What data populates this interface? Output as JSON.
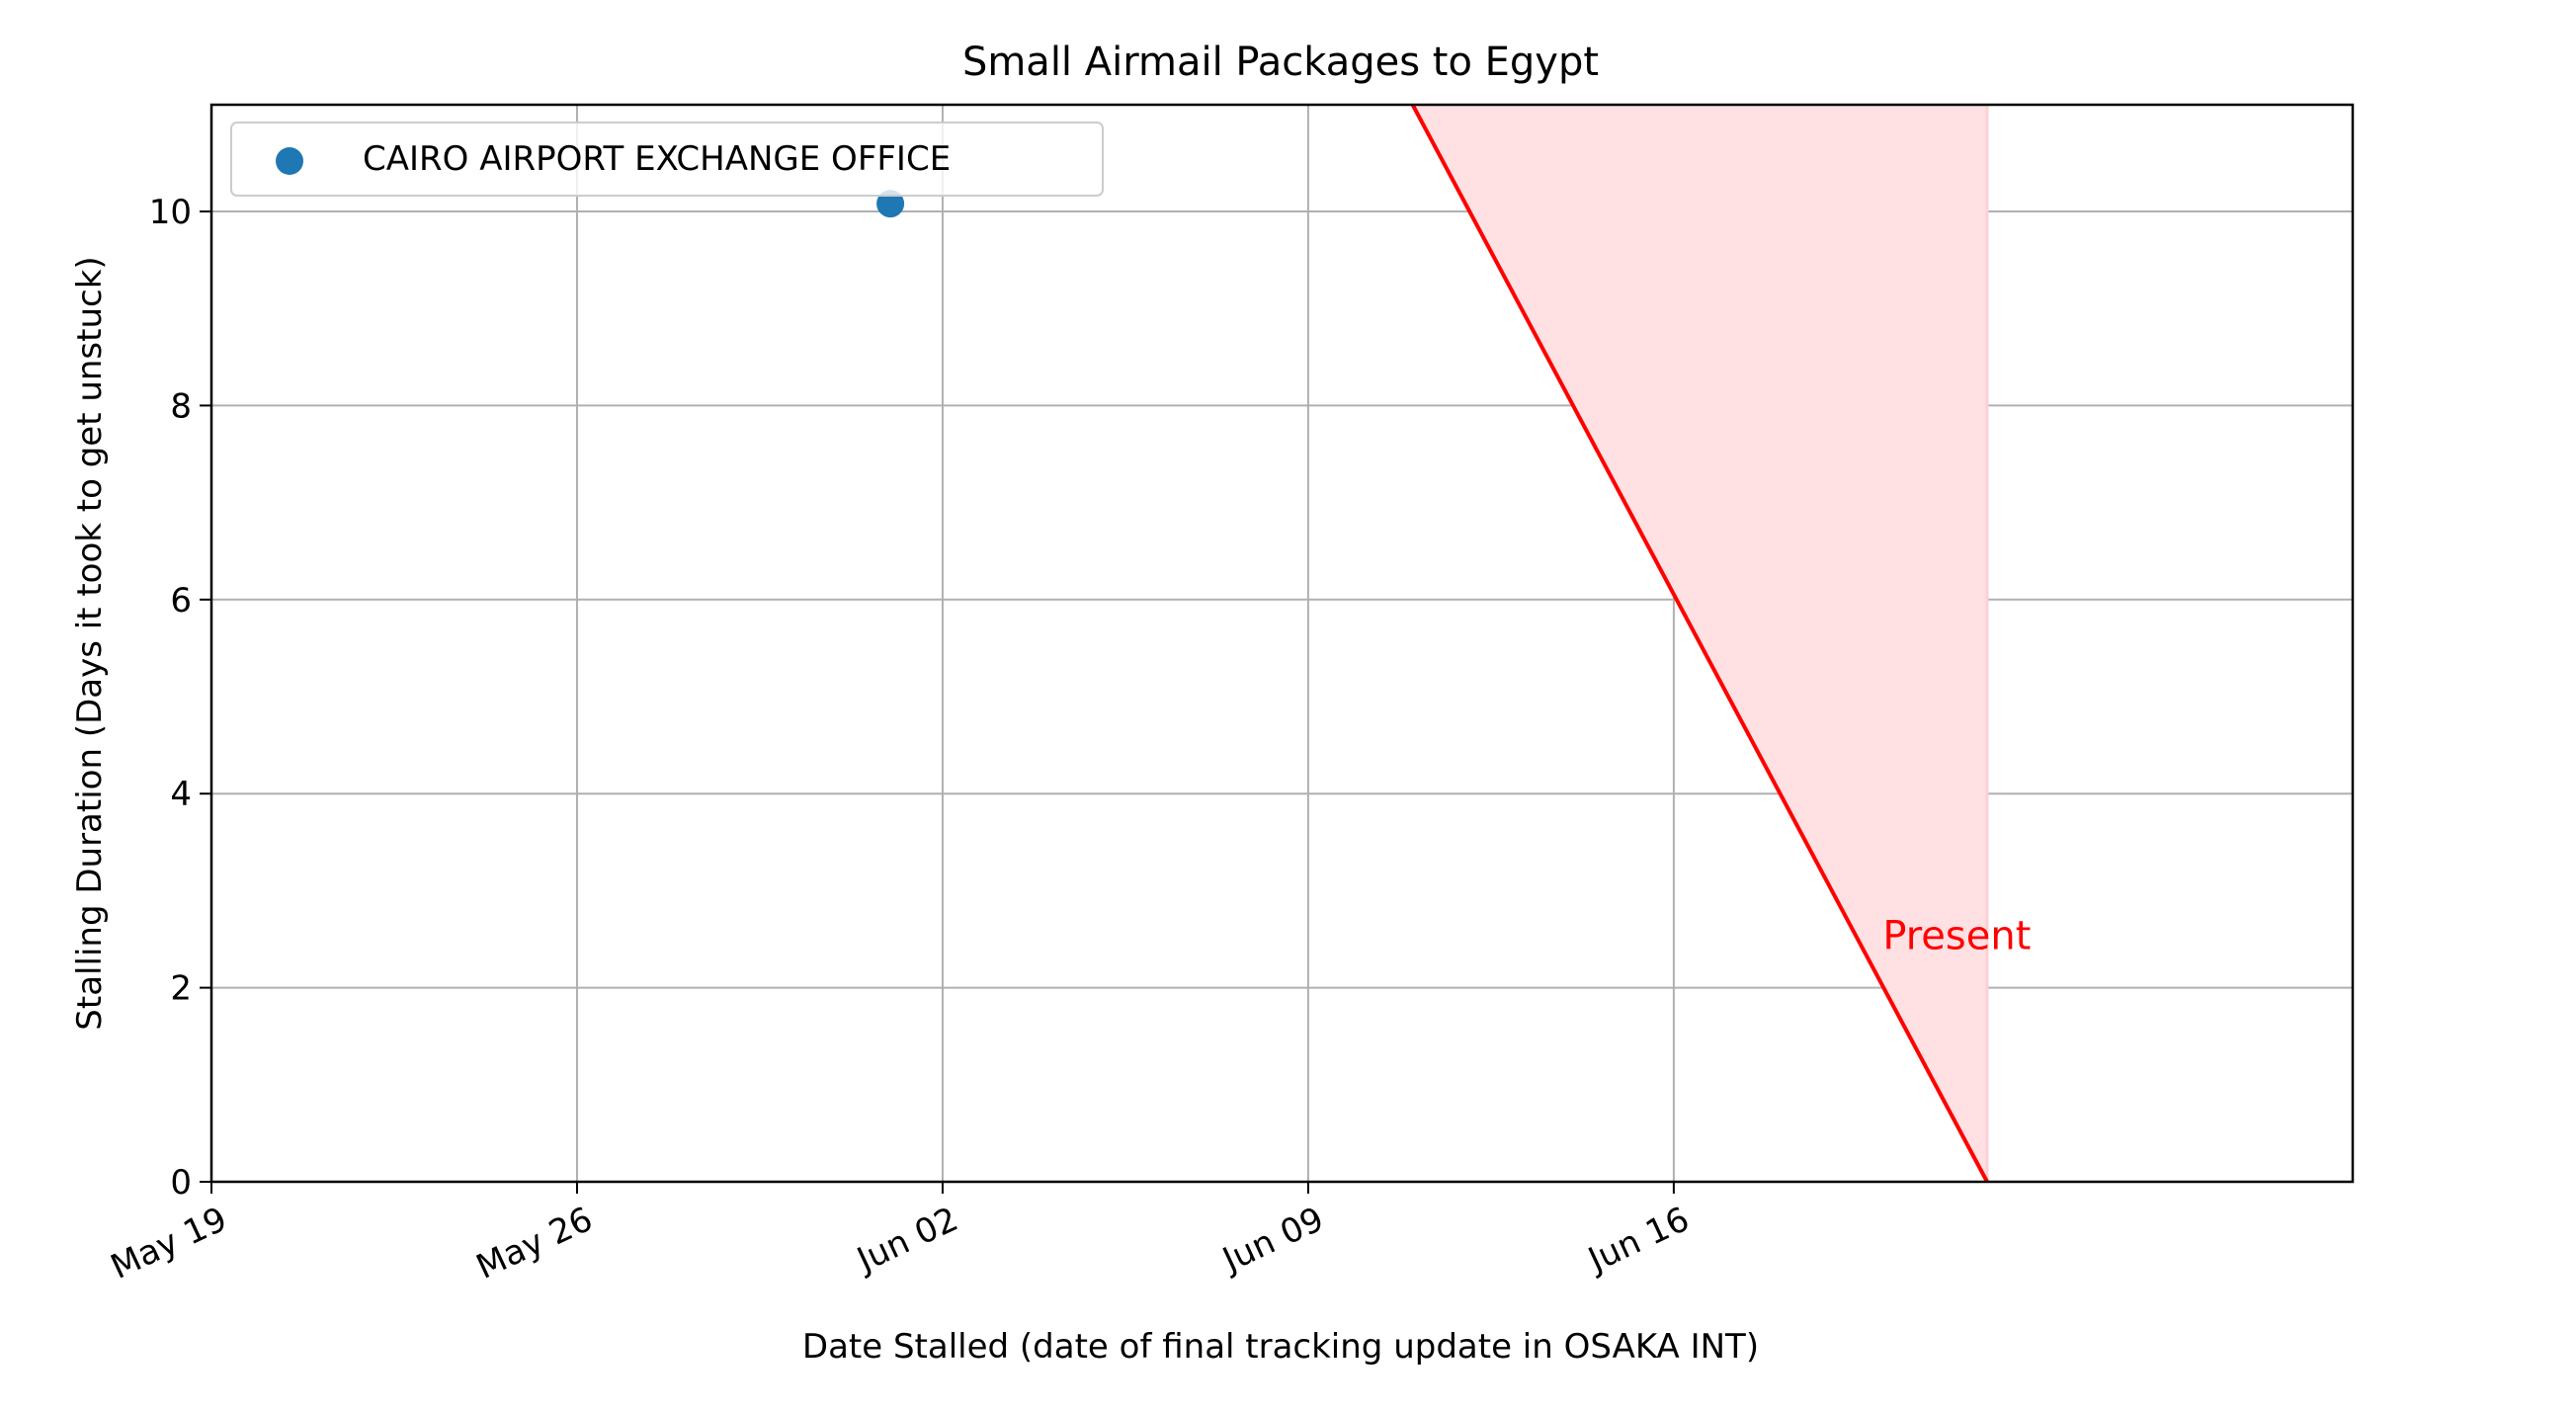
{
  "chart_data": {
    "type": "scatter",
    "title": "Small Airmail Packages to Egypt",
    "xlabel": "Date Stalled (date of final tracking update in OSAKA INT)",
    "ylabel": "Stalling Duration (Days it took to get unstuck)",
    "x_axis": "date",
    "xlim": [
      "2024-05-19",
      "2024-06-29"
    ],
    "ylim": [
      0,
      11.1
    ],
    "x_ticks": [
      {
        "date": "2024-05-19",
        "label": "May 19"
      },
      {
        "date": "2024-05-26",
        "label": "May 26"
      },
      {
        "date": "2024-06-02",
        "label": "Jun 02"
      },
      {
        "date": "2024-06-09",
        "label": "Jun 09"
      },
      {
        "date": "2024-06-16",
        "label": "Jun 16"
      }
    ],
    "y_ticks": [
      {
        "value": 0,
        "label": "0"
      },
      {
        "value": 2,
        "label": "2"
      },
      {
        "value": 4,
        "label": "4"
      },
      {
        "value": 6,
        "label": "6"
      },
      {
        "value": 8,
        "label": "8"
      },
      {
        "value": 10,
        "label": "10"
      }
    ],
    "grid": true,
    "legend_position": "top-left",
    "series": [
      {
        "name": "CAIRO AIRPORT EXCHANGE OFFICE",
        "color": "#1f77b4",
        "points": [
          {
            "x": "2024-06-01",
            "y": 10.08
          }
        ]
      }
    ],
    "present_boundary": {
      "label": "Present",
      "color": "#ff0000",
      "fill_color": "#ffe0e3",
      "date": "2024-06-22",
      "line": [
        {
          "x": "2024-06-11",
          "y": 11.1
        },
        {
          "x": "2024-06-22",
          "y": 0
        }
      ],
      "label_anchor": {
        "x": "2024-06-20",
        "y": 2.4
      }
    }
  }
}
